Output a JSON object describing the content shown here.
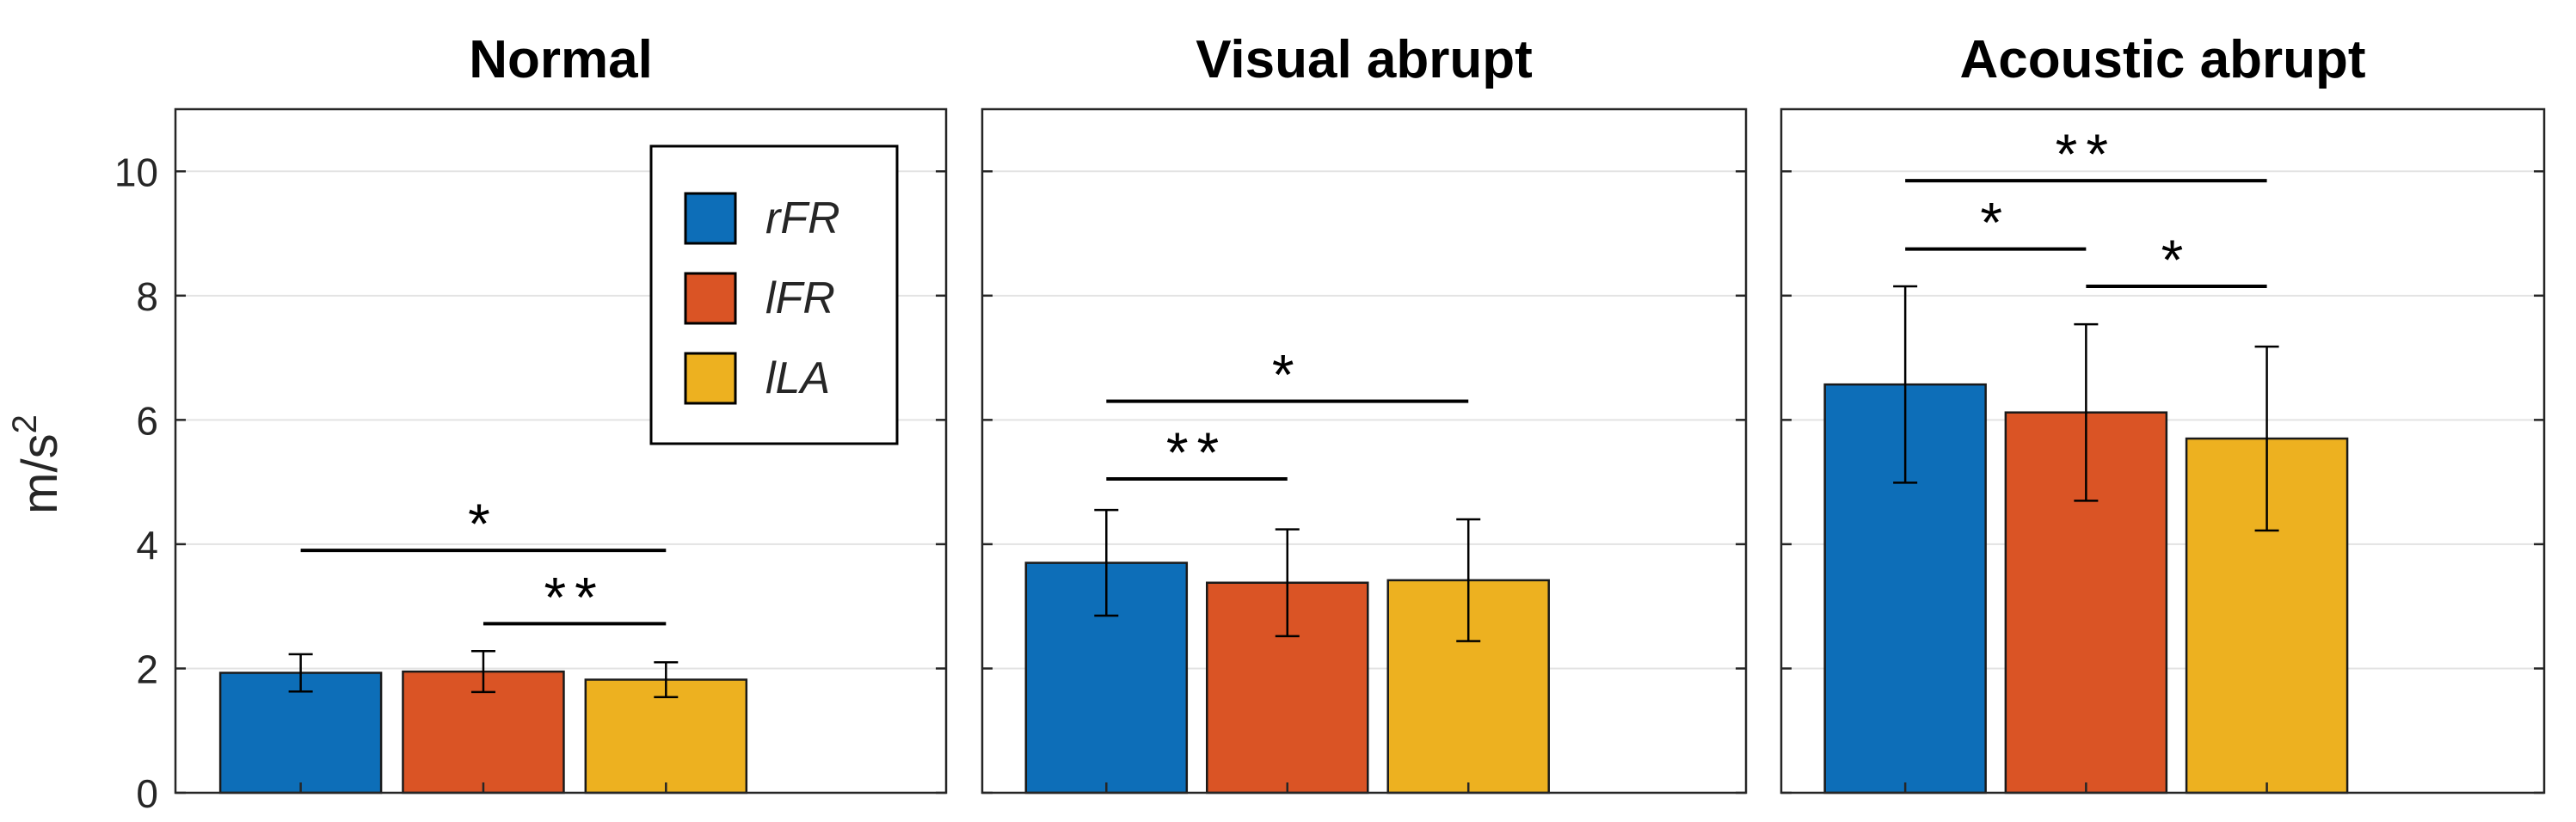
{
  "figure": {
    "ylabel_base": "m/s",
    "ylabel_sup": "2",
    "legend_entries": [
      {
        "label": "rFR",
        "color": "#0D6EB8"
      },
      {
        "label": "lFR",
        "color": "#DA5425"
      },
      {
        "label": "lLA",
        "color": "#EDB120"
      }
    ]
  },
  "chart_data": [
    {
      "type": "bar",
      "title": "Normal",
      "ylabel": "m/s2",
      "ylim": [
        0,
        11
      ],
      "yticks": [
        "0",
        "2",
        "4",
        "6",
        "8",
        "10"
      ],
      "grid": true,
      "legend": "top-right",
      "categories": [
        "rFR",
        "lFR",
        "lLA"
      ],
      "colors": [
        "#0D6EB8",
        "#DA5425",
        "#EDB120"
      ],
      "values": [
        1.93,
        1.95,
        1.82
      ],
      "errors": [
        0.3,
        0.33,
        0.28
      ],
      "significance": [
        {
          "from": 0,
          "to": 2,
          "y": 3.9,
          "label": "*"
        },
        {
          "from": 1,
          "to": 2,
          "y": 2.72,
          "label": "**"
        }
      ]
    },
    {
      "type": "bar",
      "title": "Visual abrupt",
      "ylim": [
        0,
        11
      ],
      "grid": true,
      "categories": [
        "rFR",
        "lFR",
        "lLA"
      ],
      "colors": [
        "#0D6EB8",
        "#DA5425",
        "#EDB120"
      ],
      "values": [
        3.7,
        3.38,
        3.42
      ],
      "errors": [
        0.85,
        0.86,
        0.98
      ],
      "significance": [
        {
          "from": 0,
          "to": 2,
          "y": 6.3,
          "label": "*"
        },
        {
          "from": 0,
          "to": 1,
          "y": 5.05,
          "label": "**"
        }
      ]
    },
    {
      "type": "bar",
      "title": "Acoustic abrupt",
      "ylim": [
        0,
        11
      ],
      "grid": true,
      "categories": [
        "rFR",
        "lFR",
        "lLA"
      ],
      "colors": [
        "#0D6EB8",
        "#DA5425",
        "#EDB120"
      ],
      "values": [
        6.57,
        6.12,
        5.7
      ],
      "errors": [
        1.58,
        1.42,
        1.48
      ],
      "significance": [
        {
          "from": 0,
          "to": 2,
          "y": 9.85,
          "label": "**"
        },
        {
          "from": 0,
          "to": 1,
          "y": 8.75,
          "label": "*"
        },
        {
          "from": 1,
          "to": 2,
          "y": 8.15,
          "label": "*"
        }
      ]
    }
  ]
}
